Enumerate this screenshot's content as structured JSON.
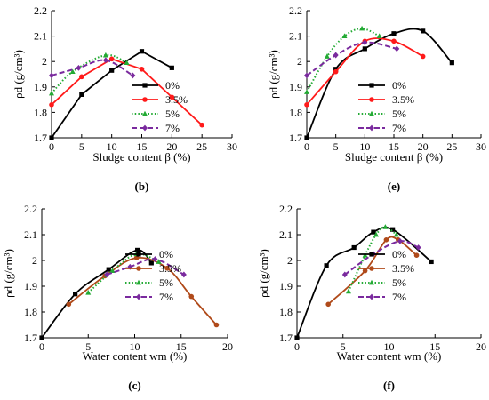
{
  "chart_data": [
    {
      "type": "line",
      "panel_label": "(b)",
      "xlabel": "Sludge content β (%)",
      "ylabel": "ρd (g/cm³)",
      "xlim": [
        0,
        30
      ],
      "ylim": [
        1.7,
        2.2
      ],
      "xticks": [
        0,
        5,
        10,
        15,
        20,
        25,
        30
      ],
      "yticks": [
        1.7,
        1.8,
        1.9,
        2.0,
        2.1,
        2.2
      ],
      "ytick_labels": [
        "1.7",
        "1.8",
        "1.9",
        "2",
        "2.1",
        "2.2"
      ],
      "grid": false,
      "legend_position": "right",
      "series": [
        {
          "name": "0%",
          "color": "#000000",
          "style": "solid",
          "marker": "square",
          "smooth": false,
          "points": [
            [
              0,
              1.7
            ],
            [
              5,
              1.87
            ],
            [
              10,
              1.965
            ],
            [
              15,
              2.04
            ],
            [
              20,
              1.975
            ]
          ]
        },
        {
          "name": "3.5%",
          "color": "#ff1a1a",
          "style": "solid",
          "marker": "circle",
          "smooth": false,
          "points": [
            [
              0,
              1.83
            ],
            [
              5,
              1.94
            ],
            [
              10,
              2.01
            ],
            [
              15,
              1.97
            ],
            [
              20,
              1.86
            ],
            [
              25,
              1.75
            ]
          ]
        },
        {
          "name": "5%",
          "color": "#22aa33",
          "style": "dotted",
          "marker": "triangle",
          "smooth": true,
          "points": [
            [
              0,
              1.875
            ],
            [
              3.5,
              1.96
            ],
            [
              9,
              2.025
            ],
            [
              12.5,
              1.995
            ]
          ]
        },
        {
          "name": "7%",
          "color": "#7a2a9e",
          "style": "dashed",
          "marker": "diamond",
          "smooth": true,
          "points": [
            [
              0,
              1.945
            ],
            [
              4.5,
              1.975
            ],
            [
              9,
              2.005
            ],
            [
              13.5,
              1.945
            ]
          ]
        }
      ]
    },
    {
      "type": "line",
      "panel_label": "(e)",
      "xlabel": "Sludge content β (%)",
      "ylabel": "ρd (g/cm³)",
      "xlim": [
        0,
        30
      ],
      "ylim": [
        1.7,
        2.2
      ],
      "xticks": [
        0,
        5,
        10,
        15,
        20,
        25,
        30
      ],
      "yticks": [
        1.7,
        1.8,
        1.9,
        2.0,
        2.1,
        2.2
      ],
      "ytick_labels": [
        "1.7",
        "1.8",
        "1.9",
        "2",
        "2.1",
        "2.2"
      ],
      "grid": false,
      "legend_position": "right",
      "series": [
        {
          "name": "0%",
          "color": "#000000",
          "style": "solid",
          "marker": "square",
          "smooth": true,
          "points": [
            [
              0,
              1.7
            ],
            [
              5,
              1.97
            ],
            [
              10,
              2.05
            ],
            [
              15,
              2.11
            ],
            [
              20,
              2.12
            ],
            [
              25,
              1.995
            ]
          ]
        },
        {
          "name": "3.5%",
          "color": "#ff1a1a",
          "style": "solid",
          "marker": "circle",
          "smooth": true,
          "points": [
            [
              0,
              1.83
            ],
            [
              5,
              1.96
            ],
            [
              10,
              2.08
            ],
            [
              15,
              2.08
            ],
            [
              20,
              2.02
            ]
          ]
        },
        {
          "name": "5%",
          "color": "#22aa33",
          "style": "dotted",
          "marker": "triangle",
          "smooth": true,
          "points": [
            [
              0,
              1.88
            ],
            [
              3.5,
              2.02
            ],
            [
              6.5,
              2.1
            ],
            [
              9.5,
              2.13
            ],
            [
              12.5,
              2.1
            ]
          ]
        },
        {
          "name": "7%",
          "color": "#7a2a9e",
          "style": "dashed",
          "marker": "diamond",
          "smooth": true,
          "points": [
            [
              0,
              1.945
            ],
            [
              5,
              2.025
            ],
            [
              10,
              2.075
            ],
            [
              15.5,
              2.05
            ]
          ]
        }
      ]
    },
    {
      "type": "line",
      "panel_label": "(c)",
      "xlabel": "Water content wm (%)",
      "ylabel": "ρd (g/cm³)",
      "xlim": [
        0,
        20
      ],
      "ylim": [
        1.7,
        2.2
      ],
      "xticks": [
        0,
        5,
        10,
        15,
        20
      ],
      "yticks": [
        1.7,
        1.8,
        1.9,
        2.0,
        2.1,
        2.2
      ],
      "ytick_labels": [
        "1.7",
        "1.8",
        "1.9",
        "2",
        "2.1",
        "2.2"
      ],
      "grid": false,
      "legend_position": "right",
      "series": [
        {
          "name": "0%",
          "color": "#000000",
          "style": "solid",
          "marker": "square",
          "smooth": true,
          "points": [
            [
              0,
              1.7
            ],
            [
              3.6,
              1.87
            ],
            [
              7.2,
              1.965
            ],
            [
              10.3,
              2.04
            ],
            [
              11.8,
              1.99
            ]
          ]
        },
        {
          "name": "3.5%",
          "color": "#b04a1a",
          "style": "solid",
          "marker": "circle",
          "smooth": true,
          "points": [
            [
              2.9,
              1.83
            ],
            [
              6.8,
              1.94
            ],
            [
              10.2,
              2.01
            ],
            [
              13.5,
              1.97
            ],
            [
              16.1,
              1.86
            ],
            [
              18.8,
              1.75
            ]
          ]
        },
        {
          "name": "5%",
          "color": "#22aa33",
          "style": "dotted",
          "marker": "triangle",
          "smooth": true,
          "points": [
            [
              5.0,
              1.875
            ],
            [
              7.6,
              1.96
            ],
            [
              10.2,
              2.025
            ],
            [
              12.6,
              1.995
            ]
          ]
        },
        {
          "name": "7%",
          "color": "#7a2a9e",
          "style": "dashed",
          "marker": "diamond",
          "smooth": true,
          "points": [
            [
              7.0,
              1.945
            ],
            [
              9.5,
              1.975
            ],
            [
              12.2,
              2.005
            ],
            [
              15.3,
              1.945
            ]
          ]
        }
      ]
    },
    {
      "type": "line",
      "panel_label": "(f)",
      "xlabel": "Water content wm (%)",
      "ylabel": "ρd (g/cm³)",
      "xlim": [
        0,
        20
      ],
      "ylim": [
        1.7,
        2.2
      ],
      "xticks": [
        0,
        5,
        10,
        15,
        20
      ],
      "yticks": [
        1.7,
        1.8,
        1.9,
        2.0,
        2.1,
        2.2
      ],
      "ytick_labels": [
        "1.7",
        "1.8",
        "1.9",
        "2",
        "2.1",
        "2.2"
      ],
      "grid": false,
      "legend_position": "right",
      "series": [
        {
          "name": "0%",
          "color": "#000000",
          "style": "solid",
          "marker": "square",
          "smooth": true,
          "points": [
            [
              0,
              1.7
            ],
            [
              3.2,
              1.98
            ],
            [
              6.2,
              2.05
            ],
            [
              8.3,
              2.11
            ],
            [
              10.4,
              2.12
            ],
            [
              14.6,
              1.995
            ]
          ]
        },
        {
          "name": "3.5%",
          "color": "#b04a1a",
          "style": "solid",
          "marker": "circle",
          "smooth": true,
          "points": [
            [
              3.4,
              1.83
            ],
            [
              7.4,
              1.96
            ],
            [
              9.7,
              2.08
            ],
            [
              11.0,
              2.08
            ],
            [
              13.0,
              2.02
            ]
          ]
        },
        {
          "name": "5%",
          "color": "#22aa33",
          "style": "dotted",
          "marker": "triangle",
          "smooth": true,
          "points": [
            [
              5.6,
              1.88
            ],
            [
              7.4,
              2.02
            ],
            [
              8.6,
              2.1
            ],
            [
              9.6,
              2.13
            ],
            [
              10.8,
              2.1
            ]
          ]
        },
        {
          "name": "7%",
          "color": "#7a2a9e",
          "style": "dashed",
          "marker": "diamond",
          "smooth": true,
          "points": [
            [
              5.2,
              1.945
            ],
            [
              8.3,
              2.025
            ],
            [
              11.2,
              2.075
            ],
            [
              13.2,
              2.05
            ]
          ]
        }
      ]
    }
  ]
}
